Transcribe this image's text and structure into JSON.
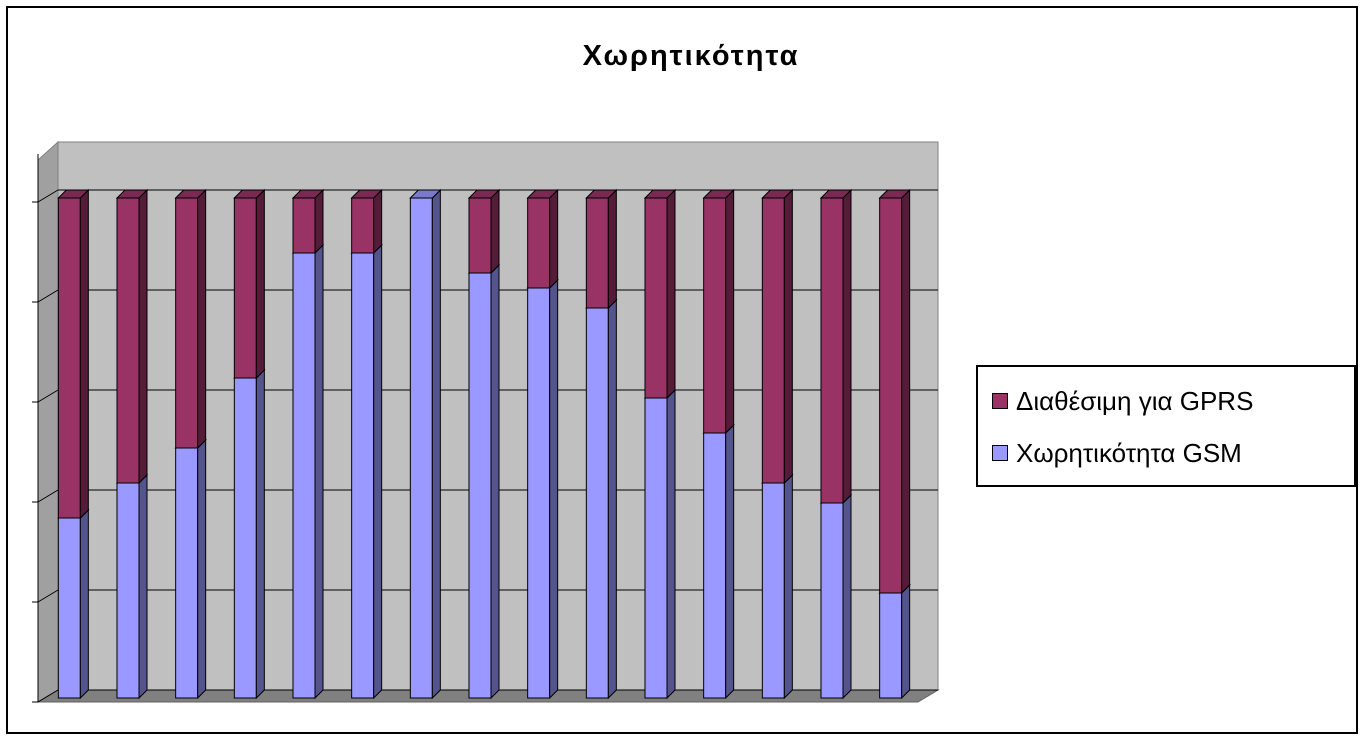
{
  "chart_data": {
    "type": "bar",
    "stacked": true,
    "title": "Χωρητικότητα",
    "categories": [
      "",
      "",
      "",
      "",
      "",
      "",
      "",
      "",
      "",
      "",
      "",
      "",
      "",
      "",
      ""
    ],
    "series": [
      {
        "name": "Χωρητικότητα GSM",
        "color": "#9999ff",
        "values": [
          36,
          43,
          50,
          64,
          89,
          89,
          100,
          85,
          82,
          78,
          60,
          53,
          43,
          39,
          21
        ]
      },
      {
        "name": "Διαθέσιμη για GPRS",
        "color": "#993366",
        "values": [
          64,
          57,
          50,
          36,
          11,
          11,
          0,
          15,
          18,
          22,
          40,
          47,
          57,
          61,
          79
        ]
      }
    ],
    "ylim": [
      0,
      100
    ],
    "gridlines": 5,
    "grid": true,
    "legend_position": "right",
    "wall_color": "#c0c0c0",
    "view": "3d"
  }
}
